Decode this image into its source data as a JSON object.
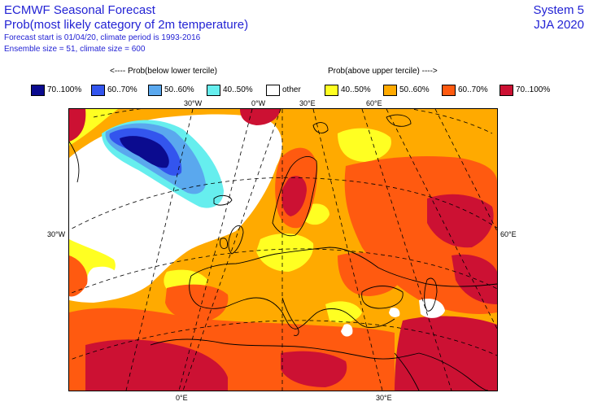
{
  "header": {
    "title": "ECMWF Seasonal Forecast",
    "subtitle": "Prob(most likely category of 2m temperature)",
    "forecast_info": "Forecast start is 01/04/20, climate period is 1993-2016",
    "ensemble_info": "Ensemble size = 51, climate size = 600",
    "system": "System 5",
    "season": "JJA 2020"
  },
  "legend": {
    "below_heading": "<---- Prob(below lower tercile)",
    "above_heading": "Prob(above upper tercile) ---->",
    "items": [
      {
        "label": "70..100%",
        "color": "#0b0b8f"
      },
      {
        "label": "60..70%",
        "color": "#3355ee"
      },
      {
        "label": "50..60%",
        "color": "#5aa8ee"
      },
      {
        "label": "40..50%",
        "color": "#66eeee"
      },
      {
        "label": "other",
        "color": "#ffffff"
      },
      {
        "label": "40..50%",
        "color": "#ffff22"
      },
      {
        "label": "50..60%",
        "color": "#ffaa00"
      },
      {
        "label": "60..70%",
        "color": "#ff5a10"
      },
      {
        "label": "70..100%",
        "color": "#cc1133"
      }
    ]
  },
  "map": {
    "graticule_labels": {
      "top_30w": "30°W",
      "top_0w": "0°W",
      "top_30e": "30°E",
      "top_60e": "60°E",
      "left_30w": "30°W",
      "right_60e": "60°E",
      "bottom_0e": "0°E",
      "bottom_30e": "30°E"
    }
  }
}
